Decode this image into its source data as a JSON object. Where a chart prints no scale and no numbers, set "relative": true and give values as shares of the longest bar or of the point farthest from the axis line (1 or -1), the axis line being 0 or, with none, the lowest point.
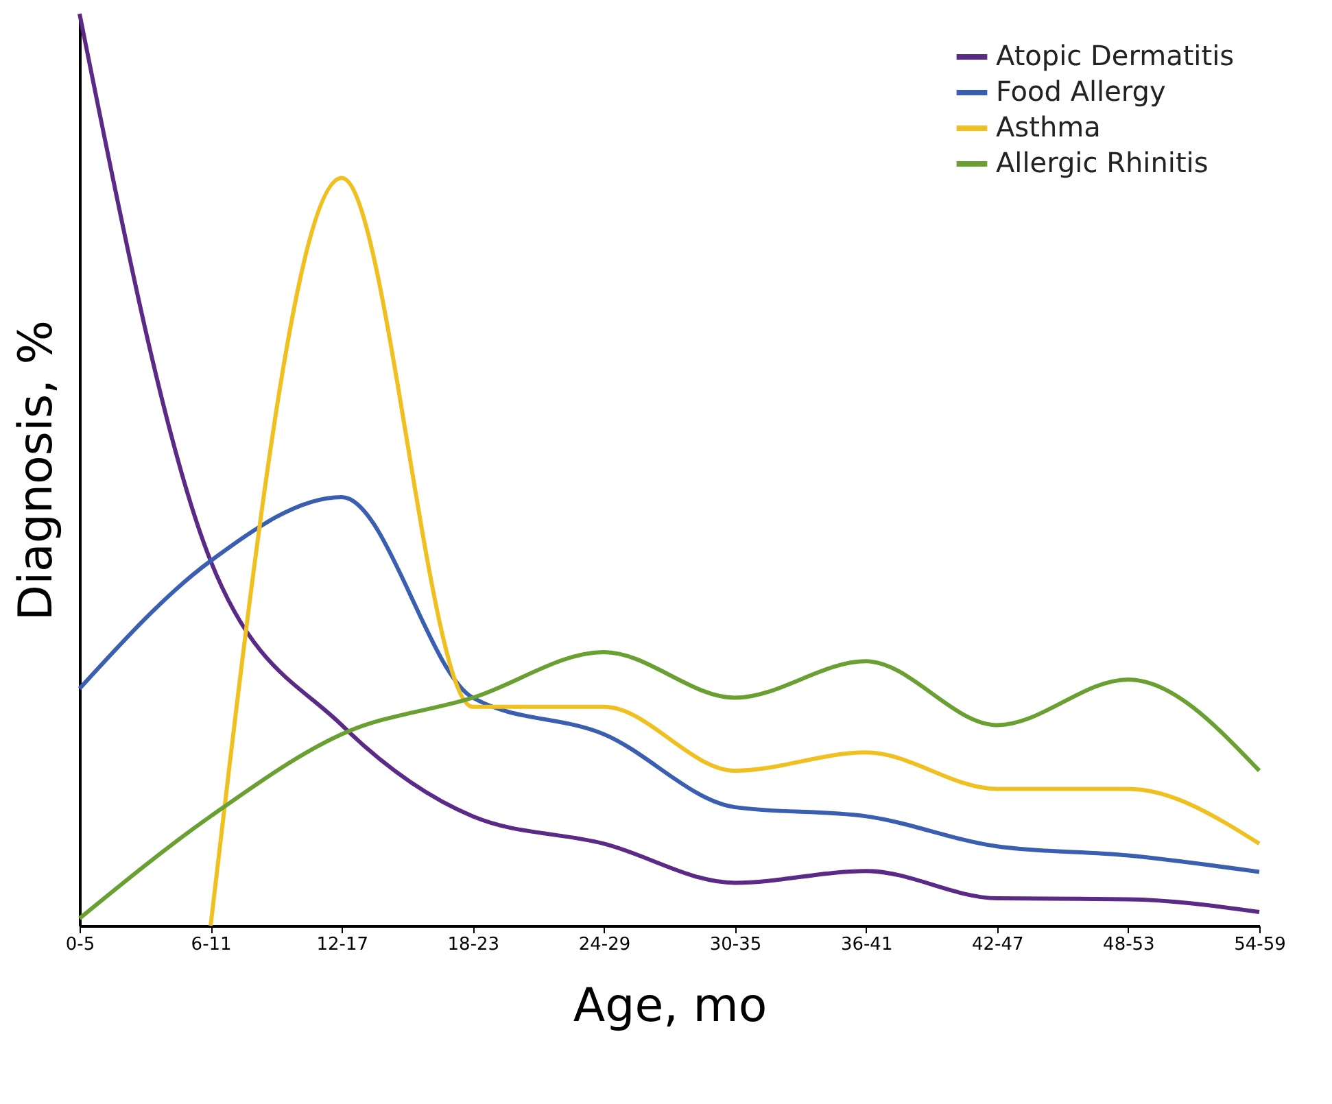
{
  "chart_data": {
    "type": "line",
    "relative": true,
    "xlabel": "Age, mo",
    "ylabel": "Diagnosis, %",
    "categories": [
      "0-5",
      "6-11",
      "12-17",
      "18-23",
      "24-29",
      "30-35",
      "36-41",
      "42-47",
      "48-53",
      "54-59"
    ],
    "legend": "top right",
    "grid": false,
    "marker": "none",
    "line_style": "solid",
    "series": [
      {
        "name": "Atopic Dermatitis",
        "color": "#5b2a86",
        "values": [
          1,
          0.4,
          0.22,
          0.12,
          0.09,
          0.047,
          0.06,
          0.03,
          0.029,
          0.015
        ]
      },
      {
        "name": "Food Allergy",
        "color": "#3a5fb0",
        "values": [
          0.26,
          0.4,
          0.47,
          0.25,
          0.21,
          0.13,
          0.12,
          0.087,
          0.077,
          0.059
        ]
      },
      {
        "name": "Asthma",
        "color": "#f0c020",
        "values": [
          null,
          0,
          0.82,
          0.24,
          0.24,
          0.17,
          0.19,
          0.15,
          0.15,
          0.09
        ]
      },
      {
        "name": "Allergic Rhinitis",
        "color": "#6aa032",
        "values": [
          0.008,
          0.12,
          0.21,
          0.25,
          0.3,
          0.25,
          0.29,
          0.22,
          0.27,
          0.17
        ]
      }
    ]
  }
}
